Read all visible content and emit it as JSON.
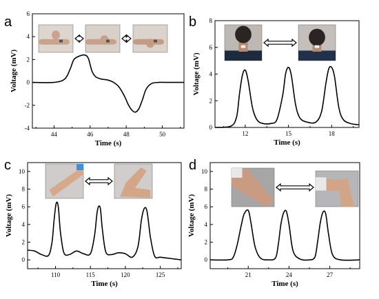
{
  "chart_data": [
    {
      "panel": "a",
      "type": "line",
      "xlabel": "Time (s)",
      "ylabel": "Voltage (mV)",
      "xlim": [
        42.8,
        51.2
      ],
      "ylim": [
        -4,
        6
      ],
      "xticks": [
        44,
        46,
        48,
        50
      ],
      "yticks": [
        -4,
        -2,
        0,
        2,
        4,
        6
      ],
      "photos": [
        "fist-bent-up",
        "arrow",
        "fist-straight",
        "arrow",
        "fist-bent-down"
      ],
      "x": [
        42.8,
        44.0,
        44.6,
        44.9,
        45.1,
        45.4,
        45.7,
        45.9,
        46.1,
        46.3,
        46.6,
        47.0,
        47.3,
        47.6,
        47.9,
        48.1,
        48.3,
        48.5,
        48.7,
        48.9,
        49.1,
        49.4,
        49.8,
        50.3,
        51.2
      ],
      "y": [
        0.0,
        0.0,
        0.3,
        1.2,
        2.0,
        2.3,
        2.4,
        2.1,
        1.0,
        0.5,
        0.3,
        0.2,
        0.0,
        -0.4,
        -1.2,
        -1.9,
        -2.4,
        -2.6,
        -2.3,
        -1.5,
        -0.6,
        -0.1,
        0.0,
        0.0,
        0.0
      ]
    },
    {
      "panel": "b",
      "type": "line",
      "xlabel": "Time (s)",
      "ylabel": "Voltage (mV)",
      "xlim": [
        9.9,
        19.9
      ],
      "ylim": [
        0,
        8
      ],
      "xticks": [
        12,
        15,
        18
      ],
      "yticks": [
        0,
        2,
        4,
        6,
        8
      ],
      "photos": [
        "neck-upright",
        "arrow",
        "neck-bent"
      ],
      "x": [
        9.9,
        11.0,
        11.4,
        11.6,
        11.8,
        12.0,
        12.2,
        12.5,
        12.8,
        13.2,
        13.8,
        14.2,
        14.6,
        14.8,
        15.0,
        15.2,
        15.5,
        15.8,
        16.3,
        16.9,
        17.3,
        17.6,
        17.8,
        18.0,
        18.2,
        18.5,
        18.8,
        19.3,
        19.9
      ],
      "y": [
        0.0,
        0.1,
        0.8,
        2.5,
        3.9,
        4.3,
        3.5,
        1.5,
        0.6,
        0.3,
        0.3,
        0.6,
        2.4,
        4.0,
        4.5,
        3.9,
        1.7,
        0.7,
        0.4,
        0.4,
        1.2,
        3.3,
        4.4,
        4.5,
        3.8,
        1.5,
        0.6,
        0.3,
        0.2
      ]
    },
    {
      "panel": "c",
      "type": "line",
      "xlabel": "Time (s)",
      "ylabel": "Voltage (mV)",
      "xlim": [
        106,
        128
      ],
      "ylim": [
        -1,
        11
      ],
      "xticks": [
        110,
        115,
        120,
        125
      ],
      "yticks": [
        0,
        2,
        4,
        6,
        8,
        10
      ],
      "photos": [
        "elbow-straight",
        "arrow",
        "elbow-bent"
      ],
      "x": [
        106,
        107,
        108,
        109,
        109.5,
        109.8,
        110.1,
        110.4,
        110.7,
        111.2,
        112,
        113,
        114,
        115,
        115.6,
        116.0,
        116.4,
        116.7,
        117.2,
        118,
        119,
        120,
        121,
        121.8,
        122.3,
        122.7,
        123.1,
        123.6,
        124.2,
        125,
        126,
        127,
        128
      ],
      "y": [
        1.1,
        1.0,
        0.6,
        0.5,
        2.0,
        4.5,
        6.4,
        6.0,
        3.2,
        0.8,
        0.6,
        1.0,
        0.7,
        0.7,
        2.8,
        5.6,
        5.9,
        3.5,
        0.9,
        0.6,
        0.8,
        0.7,
        0.3,
        1.5,
        4.5,
        5.8,
        5.5,
        2.5,
        0.4,
        0.3,
        0.2,
        0.1,
        0.0
      ]
    },
    {
      "panel": "d",
      "type": "line",
      "xlabel": "Time (s)",
      "ylabel": "Voltage (mV)",
      "xlim": [
        18.2,
        29.2
      ],
      "ylim": [
        -1,
        11
      ],
      "xticks": [
        21,
        24,
        27
      ],
      "yticks": [
        0,
        2,
        4,
        6,
        8,
        10
      ],
      "photos": [
        "knee-straight",
        "arrow",
        "knee-bent"
      ],
      "x": [
        18.2,
        19.5,
        19.9,
        20.2,
        20.5,
        20.7,
        21.0,
        21.2,
        21.5,
        21.9,
        22.5,
        23.0,
        23.2,
        23.4,
        23.6,
        23.8,
        24.0,
        24.3,
        24.8,
        25.5,
        25.9,
        26.1,
        26.3,
        26.5,
        26.7,
        26.9,
        27.2,
        27.8,
        29.2
      ],
      "y": [
        0.0,
        0.0,
        0.3,
        1.8,
        4.0,
        5.2,
        5.6,
        4.2,
        1.5,
        0.2,
        0.0,
        0.2,
        1.6,
        4.0,
        5.3,
        5.5,
        4.0,
        1.0,
        0.1,
        0.0,
        0.3,
        2.0,
        4.2,
        5.4,
        5.2,
        3.0,
        0.6,
        0.0,
        0.0
      ]
    }
  ]
}
